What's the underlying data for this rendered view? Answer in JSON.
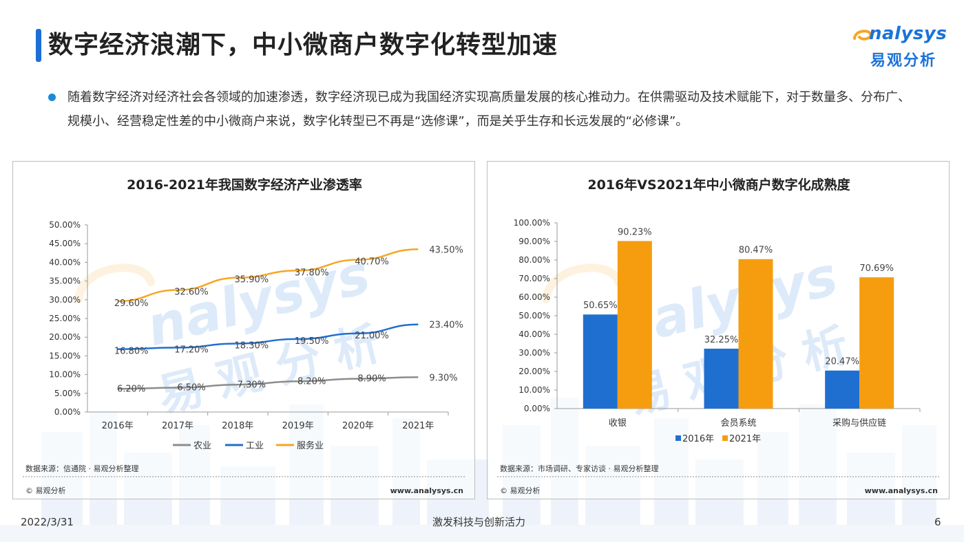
{
  "title": "数字经济浪潮下，中小微商户数字化转型加速",
  "logo": {
    "word": "nalysys",
    "cn": "易观分析"
  },
  "bullet": "随着数字经济对经济社会各领域的加速渗透，数字经济现已成为我国经济实现高质量发展的核心推动力。在供需驱动及技术赋能下，对于数量多、分布广、规模小、经营稳定性差的中小微商户来说，数字化转型已不再是“选修课”，而是关乎生存和长远发展的“必修课”。",
  "watermark": {
    "word": "nalysys",
    "cn": "易观分析"
  },
  "colors": {
    "accent": "#1b6fd6",
    "blue": "#1f6fd1",
    "orange": "#f59d0f",
    "gray": "#8c8c8c"
  },
  "footer": {
    "date": "2022/3/31",
    "slogan": "激发科技与创新活力",
    "page": "6"
  },
  "panels": [
    {
      "source": "数据来源：信通院 · 易观分析整理",
      "copyright": "© 易观分析",
      "website": "www.analysys.cn"
    },
    {
      "source": "数据来源：市场调研、专家访谈 · 易观分析整理",
      "copyright": "© 易观分析",
      "website": "www.analysys.cn"
    }
  ],
  "chart_data": [
    {
      "type": "line",
      "title": "2016-2021年我国数字经济产业渗透率",
      "categories": [
        "2016年",
        "2017年",
        "2018年",
        "2019年",
        "2020年",
        "2021年"
      ],
      "series": [
        {
          "name": "农业",
          "color": "#8c8c8c",
          "values": [
            6.2,
            6.5,
            7.3,
            8.2,
            8.9,
            9.3
          ],
          "labels": [
            "6.20%",
            "6.50%",
            "7.30%",
            "8.20%",
            "8.90%",
            "9.30%"
          ]
        },
        {
          "name": "工业",
          "color": "#1f6fd1",
          "values": [
            16.8,
            17.2,
            18.3,
            19.5,
            21.0,
            23.4
          ],
          "labels": [
            "16.80%",
            "17.20%",
            "18.30%",
            "19.50%",
            "21.00%",
            "23.40%"
          ]
        },
        {
          "name": "服务业",
          "color": "#f5a623",
          "values": [
            29.6,
            32.6,
            35.9,
            37.8,
            40.7,
            43.5
          ],
          "labels": [
            "29.60%",
            "32.60%",
            "35.90%",
            "37.80%",
            "40.70%",
            "43.50%"
          ]
        }
      ],
      "ylim": [
        0,
        50
      ],
      "yticks": [
        "0.00%",
        "5.00%",
        "10.00%",
        "15.00%",
        "20.00%",
        "25.00%",
        "30.00%",
        "35.00%",
        "40.00%",
        "45.00%",
        "50.00%"
      ],
      "grid": false,
      "legend": "bottom"
    },
    {
      "type": "bar",
      "title": "2016年VS2021年中小微商户数字化成熟度",
      "categories": [
        "收银",
        "会员系统",
        "采购与供应链"
      ],
      "series": [
        {
          "name": "2016年",
          "color": "#1f6fd1",
          "values": [
            50.65,
            32.25,
            20.47
          ],
          "labels": [
            "50.65%",
            "32.25%",
            "20.47%"
          ]
        },
        {
          "name": "2021年",
          "color": "#f59d0f",
          "values": [
            90.23,
            80.47,
            70.69
          ],
          "labels": [
            "90.23%",
            "80.47%",
            "70.69%"
          ]
        }
      ],
      "ylim": [
        0,
        100
      ],
      "yticks": [
        "0.00%",
        "10.00%",
        "20.00%",
        "30.00%",
        "40.00%",
        "50.00%",
        "60.00%",
        "70.00%",
        "80.00%",
        "90.00%",
        "100.00%"
      ],
      "grid": false,
      "legend": "bottom"
    }
  ]
}
